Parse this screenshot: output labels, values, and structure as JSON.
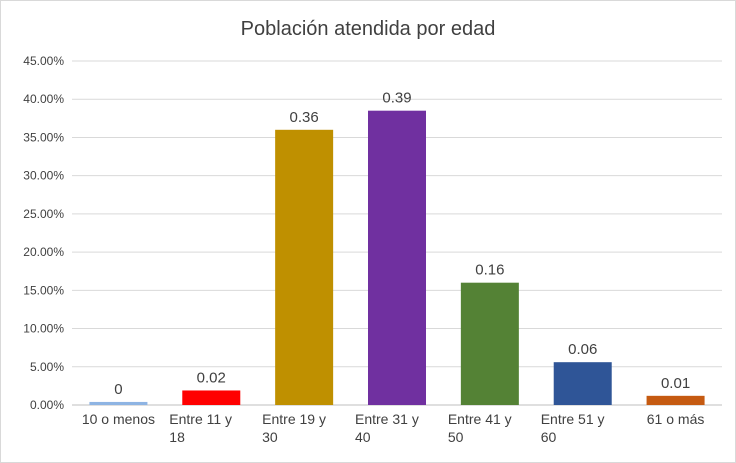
{
  "chart_data": {
    "type": "bar",
    "title": "Población atendida por edad",
    "xlabel": "",
    "ylabel": "",
    "ylim": [
      0,
      0.45
    ],
    "y_tick_labels": [
      "0.00%",
      "5.00%",
      "10.00%",
      "15.00%",
      "20.00%",
      "25.00%",
      "30.00%",
      "35.00%",
      "40.00%",
      "45.00%"
    ],
    "y_ticks": [
      0,
      0.05,
      0.1,
      0.15,
      0.2,
      0.25,
      0.3,
      0.35,
      0.4,
      0.45
    ],
    "categories": [
      [
        "10 o menos"
      ],
      [
        "Entre 11 y",
        "18"
      ],
      [
        "Entre 19 y",
        "30"
      ],
      [
        "Entre 31 y",
        "40"
      ],
      [
        "Entre 41 y",
        "50"
      ],
      [
        "Entre 51 y",
        "60"
      ],
      [
        "61 o más"
      ]
    ],
    "values": [
      0.004,
      0.019,
      0.36,
      0.385,
      0.16,
      0.056,
      0.012
    ],
    "data_labels": [
      "0",
      "0.02",
      "0.36",
      "0.39",
      "0.16",
      "0.06",
      "0.01"
    ],
    "colors": [
      "#8eb4e3",
      "#ff0000",
      "#bf9000",
      "#7030a0",
      "#548235",
      "#2f5597",
      "#c55a11"
    ],
    "grid": true,
    "legend": "none"
  }
}
